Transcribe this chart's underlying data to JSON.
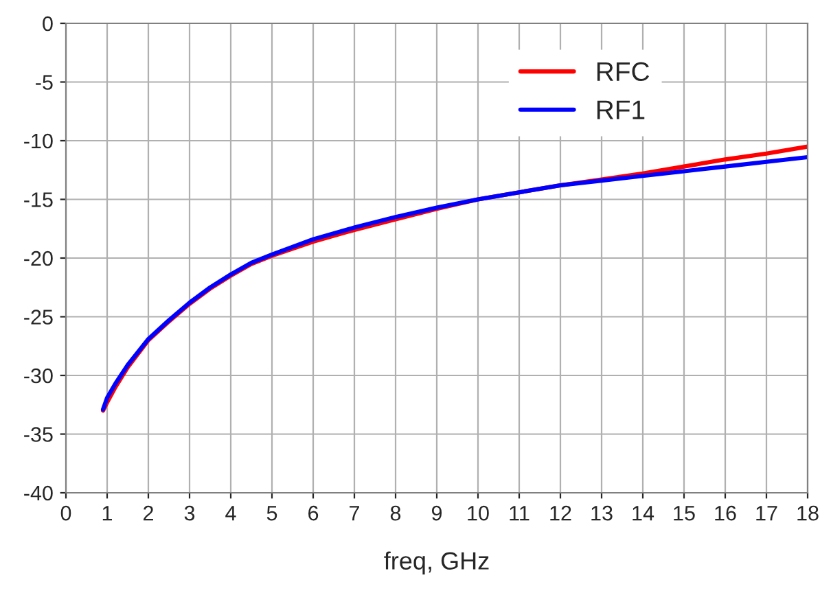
{
  "chart_data": {
    "type": "line",
    "xlabel": "freq, GHz",
    "x": [
      0.9,
      1.0,
      1.2,
      1.5,
      2.0,
      2.5,
      3.0,
      3.5,
      4.0,
      4.5,
      5.0,
      6.0,
      7.0,
      8.0,
      9.0,
      10.0,
      11.0,
      12.0,
      13.0,
      14.0,
      15.0,
      16.0,
      17.0,
      18.0
    ],
    "series": [
      {
        "name": "RFC",
        "color": "#ff0000",
        "values": [
          -33.0,
          -32.3,
          -31.0,
          -29.3,
          -27.0,
          -25.4,
          -23.9,
          -22.6,
          -21.5,
          -20.5,
          -19.8,
          -18.6,
          -17.6,
          -16.7,
          -15.8,
          -15.0,
          -14.4,
          -13.8,
          -13.3,
          -12.8,
          -12.2,
          -11.6,
          -11.1,
          -10.5
        ]
      },
      {
        "name": "RF1",
        "color": "#0000ff",
        "values": [
          -32.9,
          -31.9,
          -30.7,
          -29.1,
          -26.9,
          -25.3,
          -23.8,
          -22.5,
          -21.4,
          -20.4,
          -19.7,
          -18.4,
          -17.4,
          -16.5,
          -15.7,
          -15.0,
          -14.4,
          -13.8,
          -13.4,
          -13.0,
          -12.6,
          -12.2,
          -11.8,
          -11.4
        ]
      }
    ],
    "xlim": [
      0,
      18
    ],
    "xticks": [
      0,
      1,
      2,
      3,
      4,
      5,
      6,
      7,
      8,
      9,
      10,
      11,
      12,
      13,
      14,
      15,
      16,
      17,
      18
    ],
    "ylim": [
      -40,
      0
    ],
    "yticks": [
      -40,
      -35,
      -30,
      -25,
      -20,
      -15,
      -10,
      -5,
      0
    ],
    "grid": true,
    "legend": "top right",
    "line_style": "solid",
    "marker": "none"
  }
}
